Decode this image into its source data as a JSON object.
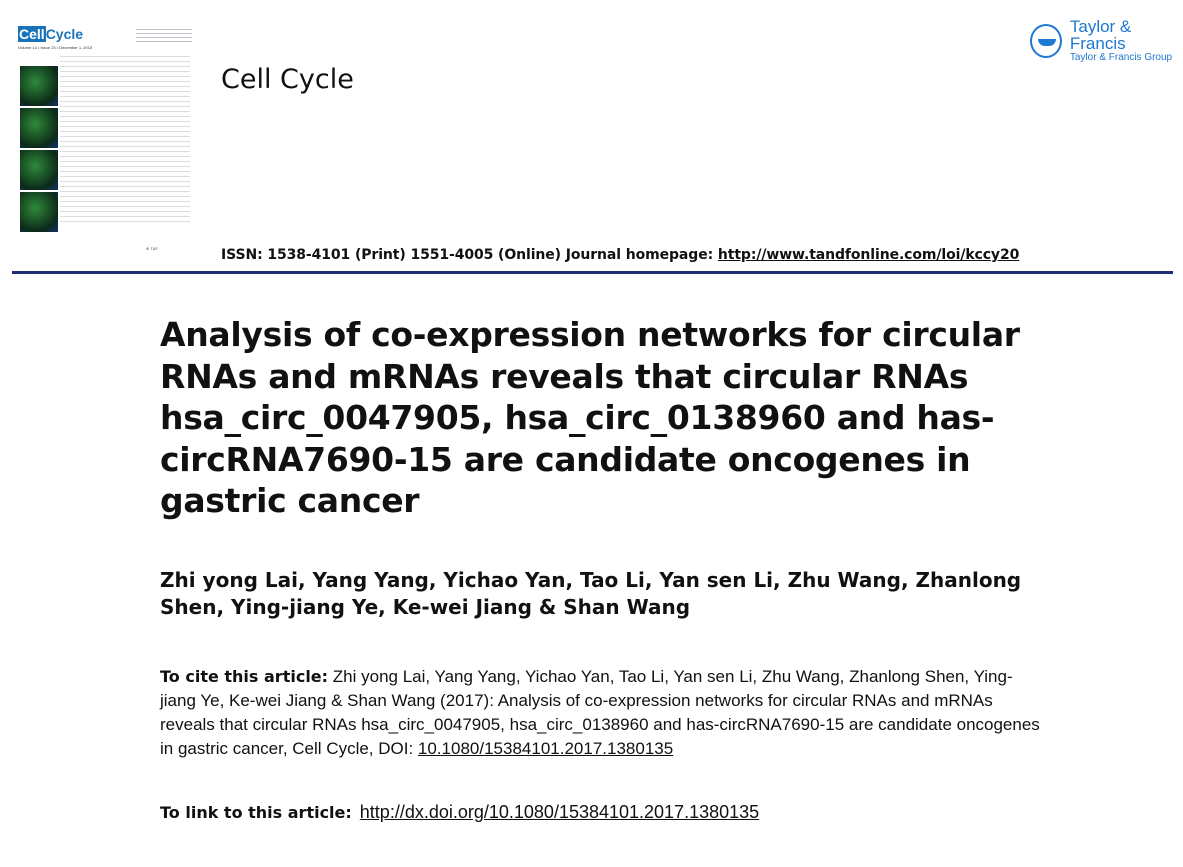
{
  "header": {
    "cover_logo": "CellCycle",
    "cover_issue": "Volume 14 • Issue 23 • December 1, 2015",
    "journal_name": "Cell Cycle",
    "publisher_logo": {
      "name": "Taylor & Francis",
      "group": "Taylor & Francis Group",
      "color": "#1f78d1"
    },
    "issn_text": "ISSN: 1538-4101 (Print) 1551-4005 (Online) Journal homepage: ",
    "homepage_url": "http://www.tandfonline.com/loi/kccy20",
    "rule_color": "#1d2c74"
  },
  "article": {
    "title": "Analysis of co-expression networks for circular RNAs and mRNAs reveals that circular RNAs hsa_circ_0047905, hsa_circ_0138960 and has-circRNA7690-15 are candidate oncogenes in gastric cancer",
    "authors": "Zhi yong Lai, Yang Yang, Yichao Yan, Tao Li, Yan sen Li, Zhu Wang, Zhanlong Shen, Ying-jiang Ye, Ke-wei Jiang & Shan Wang",
    "cite_label": "To cite this article:",
    "cite_text": " Zhi yong Lai, Yang Yang, Yichao Yan, Tao Li, Yan sen Li, Zhu Wang, Zhanlong Shen, Ying-jiang Ye, Ke-wei Jiang & Shan Wang (2017): Analysis of co-expression networks for circular RNAs and mRNAs reveals that circular RNAs hsa_circ_0047905, hsa_circ_0138960 and has-circRNA7690-15 are candidate oncogenes in gastric cancer, Cell Cycle, DOI: ",
    "doi": "10.1080/15384101.2017.1380135",
    "link_label": "To link to this article:",
    "link_url": "http://dx.doi.org/10.1080/15384101.2017.1380135"
  }
}
